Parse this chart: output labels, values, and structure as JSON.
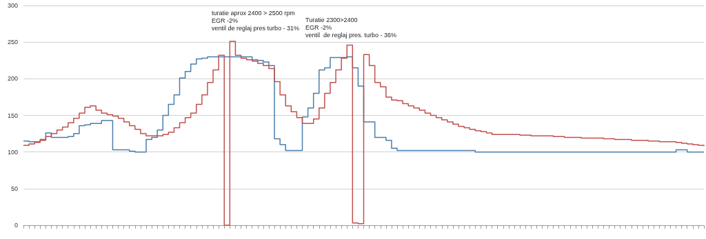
{
  "chart_data": {
    "type": "step",
    "categories": [
      null,
      null,
      null,
      null,
      null,
      null,
      null,
      null,
      null,
      null,
      null,
      null,
      null,
      null,
      null,
      null,
      null,
      null,
      null,
      null,
      null,
      null,
      null,
      null,
      null,
      null,
      null,
      null,
      null,
      null,
      null,
      null,
      null,
      null,
      null,
      null,
      null,
      null,
      null,
      null,
      null,
      null,
      null,
      null,
      null,
      null,
      null,
      null,
      null,
      null,
      null,
      null,
      null,
      null,
      null,
      null,
      null,
      null,
      null,
      null,
      null,
      null,
      null,
      null,
      null,
      null,
      null,
      null,
      null,
      null,
      null,
      null,
      null,
      null,
      null,
      null,
      null,
      null,
      null,
      null,
      null,
      null,
      null,
      null,
      null,
      null,
      null,
      null,
      null,
      null,
      null,
      null,
      null,
      null,
      null,
      null,
      null,
      null,
      null,
      null,
      null,
      null,
      null,
      null,
      null,
      null,
      null,
      null,
      null,
      null,
      null,
      null,
      null,
      null,
      null,
      null,
      null,
      null,
      null,
      null,
      null,
      null,
      null
    ],
    "series": [
      {
        "color": "#4a7eab",
        "values": [
          115,
          114,
          114,
          117,
          126,
          120,
          120,
          120,
          121,
          125,
          136,
          137,
          139,
          139,
          143,
          143,
          103,
          103,
          103,
          101,
          100,
          100,
          117,
          120,
          130,
          150,
          165,
          178,
          201,
          210,
          220,
          227,
          228,
          230,
          230,
          230,
          230,
          230,
          230,
          230,
          230,
          226,
          225,
          223,
          218,
          118,
          110,
          102,
          102,
          102,
          148,
          160,
          180,
          212,
          215,
          229,
          229,
          229,
          230,
          215,
          190,
          141,
          141,
          120,
          120,
          116,
          105,
          102,
          102,
          102,
          102,
          102,
          102,
          102,
          102,
          102,
          102,
          102,
          102,
          102,
          102,
          100,
          100,
          100,
          100,
          100,
          100,
          100,
          100,
          100,
          100,
          100,
          100,
          100,
          100,
          100,
          100,
          100,
          100,
          100,
          100,
          100,
          100,
          100,
          100,
          100,
          100,
          100,
          100,
          100,
          100,
          100,
          100,
          100,
          100,
          100,
          100,
          103,
          103,
          100,
          100,
          100,
          100
        ]
      },
      {
        "color": "#c0504d",
        "values": [
          109,
          111,
          113,
          116,
          121,
          125,
          130,
          134,
          140,
          146,
          153,
          161,
          163,
          157,
          153,
          151,
          149,
          146,
          141,
          136,
          131,
          125,
          122,
          122,
          122,
          124,
          127,
          133,
          140,
          147,
          153,
          165,
          178,
          195,
          212,
          232,
          0,
          251,
          232,
          228,
          226,
          224,
          221,
          218,
          214,
          196,
          178,
          163,
          155,
          147,
          139,
          139,
          145,
          160,
          180,
          195,
          212,
          228,
          246,
          3,
          2,
          233,
          218,
          195,
          189,
          175,
          171,
          170,
          166,
          163,
          160,
          157,
          153,
          150,
          147,
          144,
          141,
          138,
          135,
          133,
          131,
          129,
          128,
          126,
          124,
          124,
          124,
          124,
          124,
          123,
          123,
          122,
          122,
          122,
          122,
          121,
          121,
          120,
          120,
          120,
          119,
          119,
          119,
          119,
          118,
          118,
          117,
          117,
          117,
          116,
          116,
          116,
          115,
          115,
          114,
          114,
          114,
          113,
          112,
          111,
          110,
          109,
          108
        ]
      }
    ],
    "ylim": [
      0,
      300
    ],
    "yticks": [
      0,
      50,
      100,
      150,
      200,
      250,
      300
    ],
    "grid": "y",
    "marker": "none",
    "line_style": "solid",
    "annotations": [
      "turatie aprox 2400 > 2500 rpm",
      "EGR -2%",
      "ventil de reglaj pres turbo - 31%",
      "Turatie 2300>2400",
      "EGR -2%",
      "ventil  de reglaj pres. turbo - 36%"
    ]
  }
}
